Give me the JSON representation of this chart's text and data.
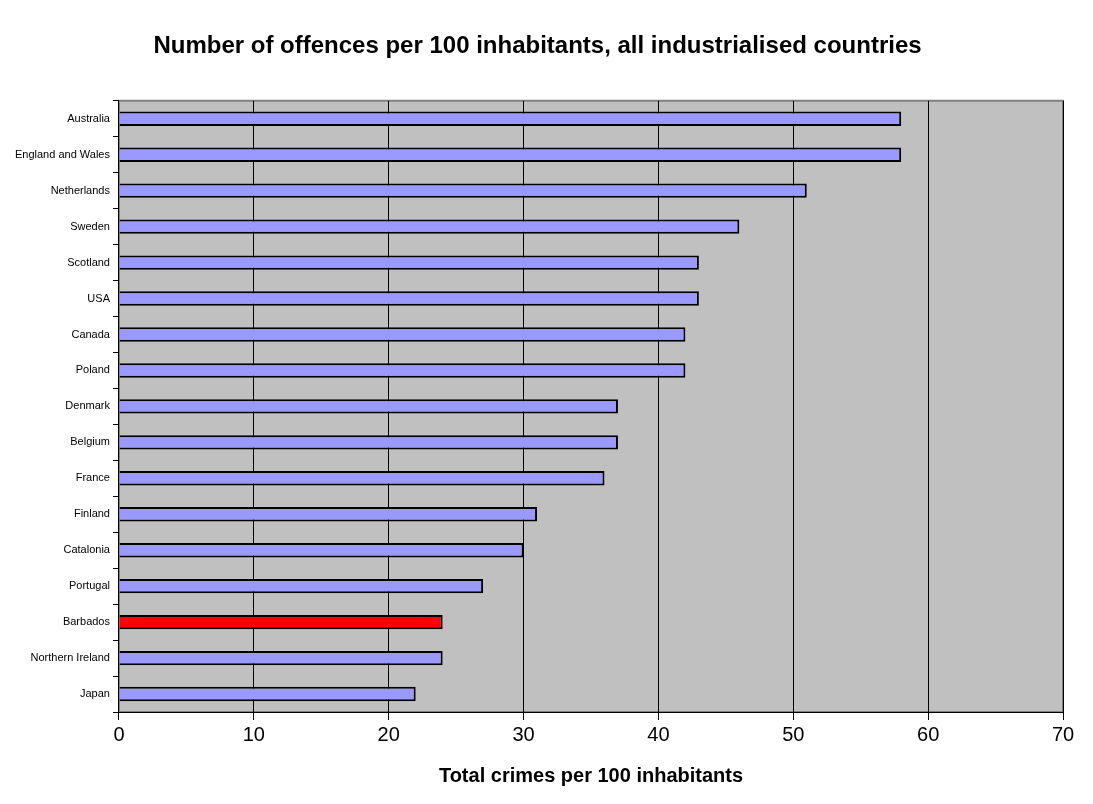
{
  "chart_data": {
    "type": "bar",
    "orientation": "horizontal",
    "title": "Number of offences per 100 inhabitants, all industrialised countries",
    "xlabel": "Total crimes per 100 inhabitants",
    "categories": [
      "Australia",
      "England and Wales",
      "Netherlands",
      "Sweden",
      "Scotland",
      "USA",
      "Canada",
      "Poland",
      "Denmark",
      "Belgium",
      "France",
      "Finland",
      "Catalonia",
      "Portugal",
      "Barbados",
      "Northern Ireland",
      "Japan"
    ],
    "values": [
      58,
      58,
      51,
      46,
      43,
      43,
      42,
      42,
      37,
      37,
      36,
      31,
      30,
      27,
      24,
      24,
      22
    ],
    "colors": [
      "#9999ff",
      "#9999ff",
      "#9999ff",
      "#9999ff",
      "#9999ff",
      "#9999ff",
      "#9999ff",
      "#9999ff",
      "#9999ff",
      "#9999ff",
      "#9999ff",
      "#9999ff",
      "#9999ff",
      "#9999ff",
      "#ff0000",
      "#9999ff",
      "#9999ff"
    ],
    "xlim": [
      0,
      70
    ],
    "xticks": [
      0,
      10,
      20,
      30,
      40,
      50,
      60,
      70
    ],
    "grid": "x",
    "legend": false
  }
}
